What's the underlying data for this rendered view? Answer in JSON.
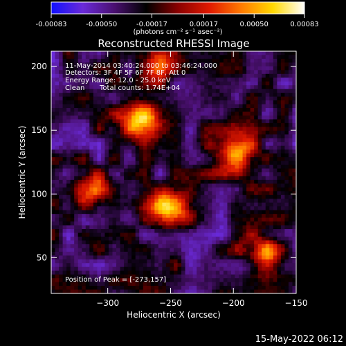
{
  "chart_data": {
    "type": "heatmap",
    "title": "Reconstructed RHESSI Image",
    "xlabel": "Heliocentric X (arcsec)",
    "ylabel": "Heliocentric Y (arcsec)",
    "xlim": [
      -345,
      -150
    ],
    "ylim": [
      22,
      212
    ],
    "xticks": [
      -300,
      -250,
      -200,
      -150
    ],
    "yticks": [
      50,
      100,
      150,
      200
    ],
    "colorbar": {
      "range": [
        -0.00083,
        0.00083
      ],
      "ticks": [
        -0.00083,
        -0.0005,
        -0.00017,
        0.00017,
        0.0005,
        0.00083
      ],
      "tick_labels": [
        "-0.00083",
        "-0.00050",
        "-0.00017",
        "0.00017",
        "0.00050",
        "0.00083"
      ],
      "unit_label": "(photons cm⁻² s⁻¹ asec⁻²)",
      "colors": [
        "#1010ff",
        "#6a2ad8",
        "#4a1070",
        "#000000",
        "#8a0000",
        "#e01a00",
        "#ff7a00",
        "#ffd800",
        "#ffffff"
      ]
    },
    "sources": [
      {
        "x": -273,
        "y": 157,
        "intensity": 0.00083
      },
      {
        "x": -250,
        "y": 88,
        "intensity": 0.00078
      },
      {
        "x": -198,
        "y": 132,
        "intensity": 0.0007
      },
      {
        "x": -175,
        "y": 52,
        "intensity": 0.00055
      },
      {
        "x": -315,
        "y": 103,
        "intensity": 0.0005
      },
      {
        "x": -260,
        "y": 202,
        "intensity": 0.0004
      }
    ],
    "annotations": {
      "time": "11-May-2014 03:40:24.000 to 03:46:24.000",
      "detectors": "Detectors: 3F 4F 5F 6F 7F 8F, Att 0",
      "energy": "Energy Range: 12.0 - 25.0 keV",
      "method": "Clean",
      "counts": "Total counts: 1.74E+04",
      "peak": "Position of Peak = [-273,157]"
    },
    "footer": "15-May-2022 06:12"
  }
}
